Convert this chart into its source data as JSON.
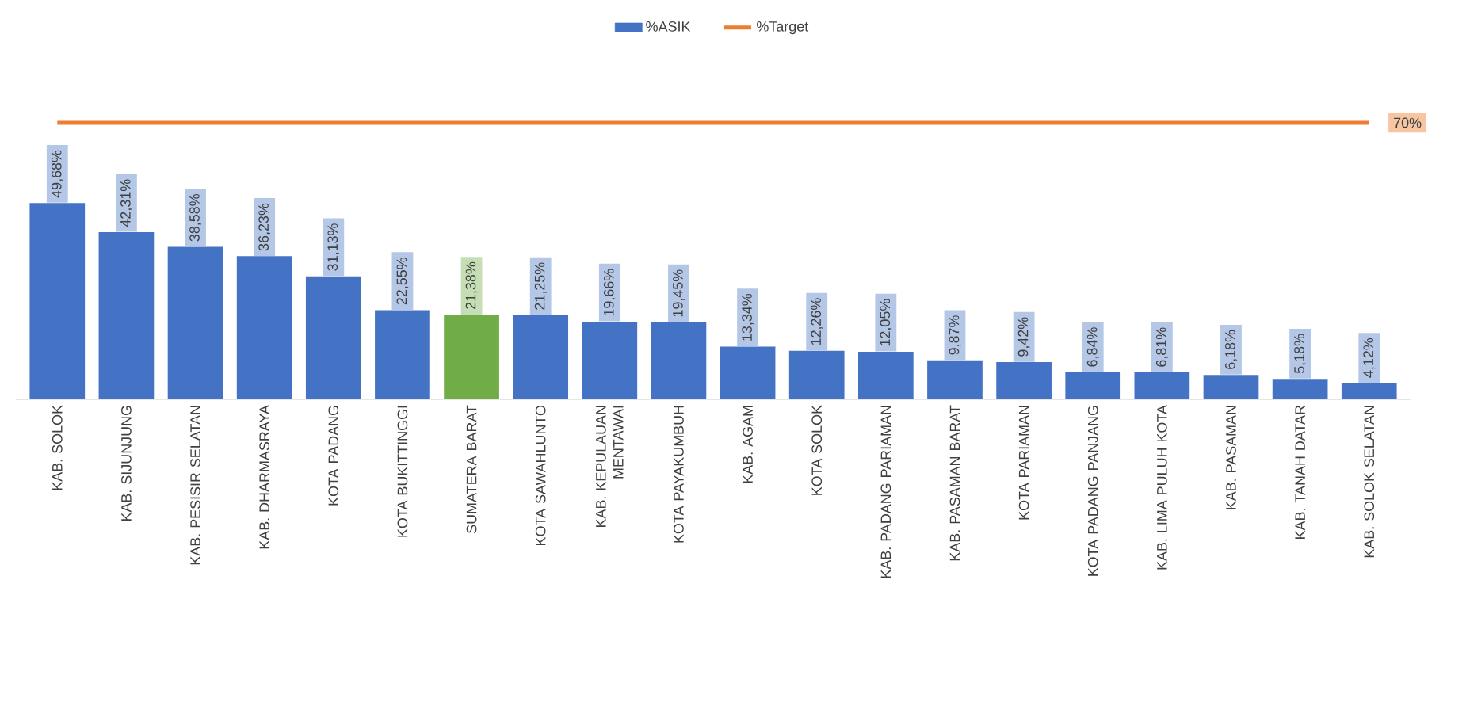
{
  "chart_data": {
    "type": "bar",
    "categories": [
      "KAB. SOLOK",
      "KAB. SIJUNJUNG",
      "KAB. PESISIR SELATAN",
      "KAB. DHARMASRAYA",
      "KOTA PADANG",
      "KOTA BUKITTINGGI",
      "SUMATERA BARAT",
      "KOTA SAWAHLUNTO",
      "KAB. KEPULAUAN MENTAWAI",
      "KOTA PAYAKUMBUH",
      "KAB. AGAM",
      "KOTA SOLOK",
      "KAB. PADANG PARIAMAN",
      "KAB. PASAMAN BARAT",
      "KOTA PARIAMAN",
      "KOTA PADANG PANJANG",
      "KAB. LIMA PULUH KOTA",
      "KAB. PASAMAN",
      "KAB. TANAH DATAR",
      "KAB. SOLOK SELATAN"
    ],
    "series": [
      {
        "name": "%ASIK",
        "color": "#4472c4",
        "colors": [
          "#4472c4",
          "#4472c4",
          "#4472c4",
          "#4472c4",
          "#4472c4",
          "#4472c4",
          "#70ad47",
          "#4472c4",
          "#4472c4",
          "#4472c4",
          "#4472c4",
          "#4472c4",
          "#4472c4",
          "#4472c4",
          "#4472c4",
          "#4472c4",
          "#4472c4",
          "#4472c4",
          "#4472c4",
          "#4472c4"
        ],
        "values": [
          49.68,
          42.31,
          38.58,
          36.23,
          31.13,
          22.55,
          21.38,
          21.25,
          19.66,
          19.45,
          13.34,
          12.26,
          12.05,
          9.87,
          9.42,
          6.84,
          6.81,
          6.18,
          5.18,
          4.12
        ],
        "value_labels": [
          "49,68%",
          "42,31%",
          "38,58%",
          "36,23%",
          "31,13%",
          "22,55%",
          "21,38%",
          "21,25%",
          "19,66%",
          "19,45%",
          "13,34%",
          "12,26%",
          "12,05%",
          "9,87%",
          "9,42%",
          "6,84%",
          "6,81%",
          "6,18%",
          "5,18%",
          "4,12%"
        ]
      },
      {
        "name": "%Target",
        "type": "line",
        "color": "#ed7d31",
        "values": [
          70,
          70,
          70,
          70,
          70,
          70,
          70,
          70,
          70,
          70,
          70,
          70,
          70,
          70,
          70,
          70,
          70,
          70,
          70,
          70
        ],
        "value_labels": [
          null,
          null,
          null,
          null,
          null,
          null,
          null,
          null,
          null,
          null,
          null,
          null,
          null,
          null,
          null,
          null,
          null,
          null,
          null,
          "70%"
        ]
      }
    ],
    "legend": "top",
    "tick_labels": "x"
  }
}
